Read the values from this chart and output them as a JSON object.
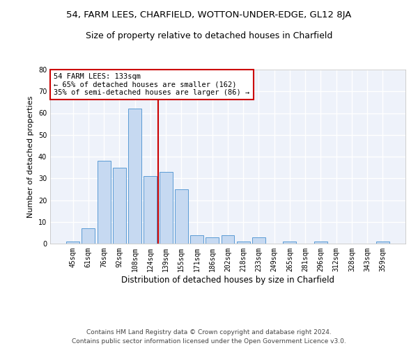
{
  "title1": "54, FARM LEES, CHARFIELD, WOTTON-UNDER-EDGE, GL12 8JA",
  "title2": "Size of property relative to detached houses in Charfield",
  "xlabel": "Distribution of detached houses by size in Charfield",
  "ylabel": "Number of detached properties",
  "categories": [
    "45sqm",
    "61sqm",
    "76sqm",
    "92sqm",
    "108sqm",
    "124sqm",
    "139sqm",
    "155sqm",
    "171sqm",
    "186sqm",
    "202sqm",
    "218sqm",
    "233sqm",
    "249sqm",
    "265sqm",
    "281sqm",
    "296sqm",
    "312sqm",
    "328sqm",
    "343sqm",
    "359sqm"
  ],
  "values": [
    1,
    7,
    38,
    35,
    62,
    31,
    33,
    25,
    4,
    3,
    4,
    1,
    3,
    0,
    1,
    0,
    1,
    0,
    0,
    0,
    1
  ],
  "bar_color": "#c6d9f1",
  "bar_edge_color": "#5b9bd5",
  "vline_x_index": 5.5,
  "vline_color": "#cc0000",
  "annotation_line1": "54 FARM LEES: 133sqm",
  "annotation_line2": "← 65% of detached houses are smaller (162)",
  "annotation_line3": "35% of semi-detached houses are larger (86) →",
  "annotation_box_color": "#cc0000",
  "ylim": [
    0,
    80
  ],
  "yticks": [
    0,
    10,
    20,
    30,
    40,
    50,
    60,
    70,
    80
  ],
  "footnote1": "Contains HM Land Registry data © Crown copyright and database right 2024.",
  "footnote2": "Contains public sector information licensed under the Open Government Licence v3.0.",
  "background_color": "#eef2fa",
  "grid_color": "#ffffff",
  "title1_fontsize": 9.5,
  "title2_fontsize": 9,
  "xlabel_fontsize": 8.5,
  "ylabel_fontsize": 8,
  "tick_fontsize": 7,
  "annotation_fontsize": 7.5,
  "footnote_fontsize": 6.5
}
